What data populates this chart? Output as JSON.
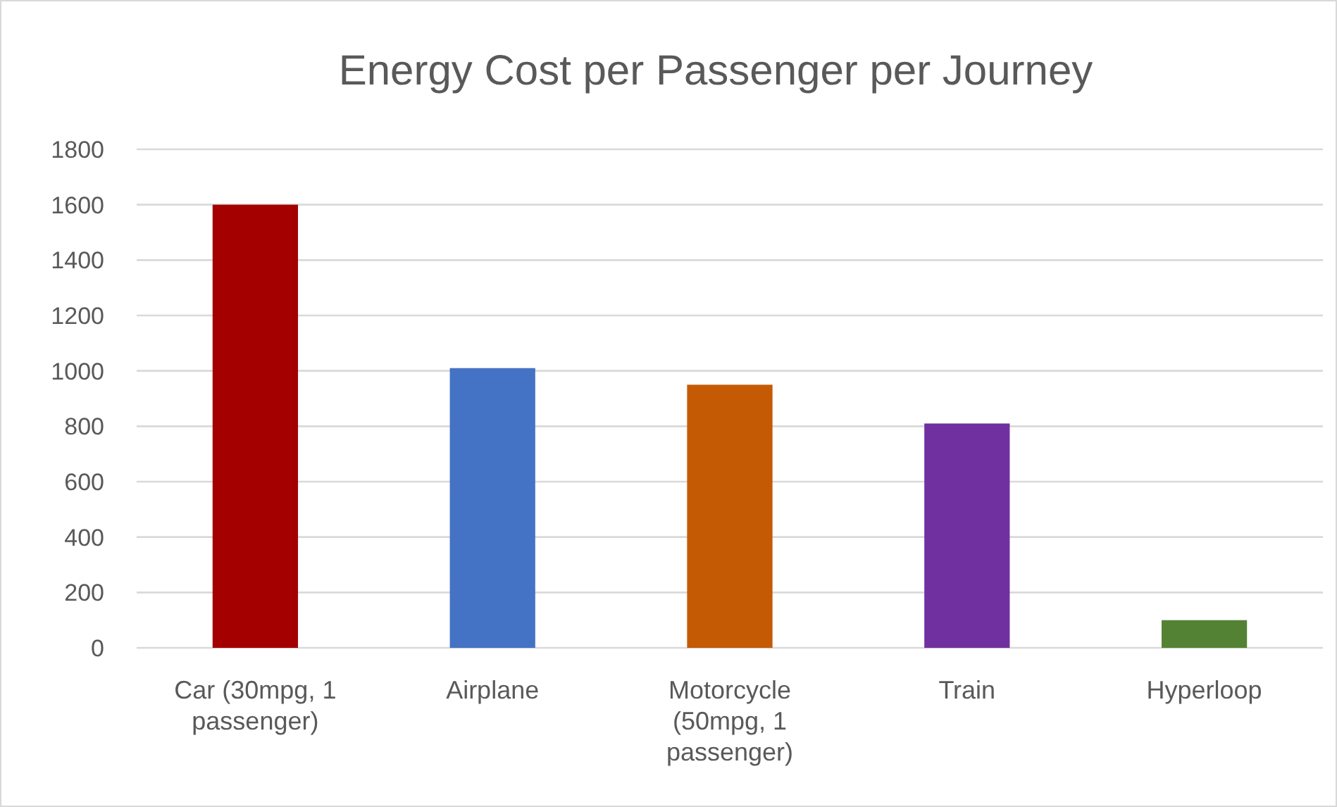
{
  "chart_data": {
    "type": "bar",
    "title": "Energy Cost per Passenger per Journey",
    "categories": [
      "Car (30mpg, 1 passenger)",
      "Airplane",
      "Motorcycle (50mpg, 1 passenger)",
      "Train",
      "Hyperloop"
    ],
    "values": [
      1600,
      1010,
      950,
      810,
      100
    ],
    "colors": [
      "#a50000",
      "#4472c4",
      "#c55a05",
      "#7030a0",
      "#548235"
    ],
    "ylim": [
      0,
      1800
    ],
    "yticks": [
      0,
      200,
      400,
      600,
      800,
      1000,
      1200,
      1400,
      1600,
      1800
    ],
    "grid": "y"
  }
}
